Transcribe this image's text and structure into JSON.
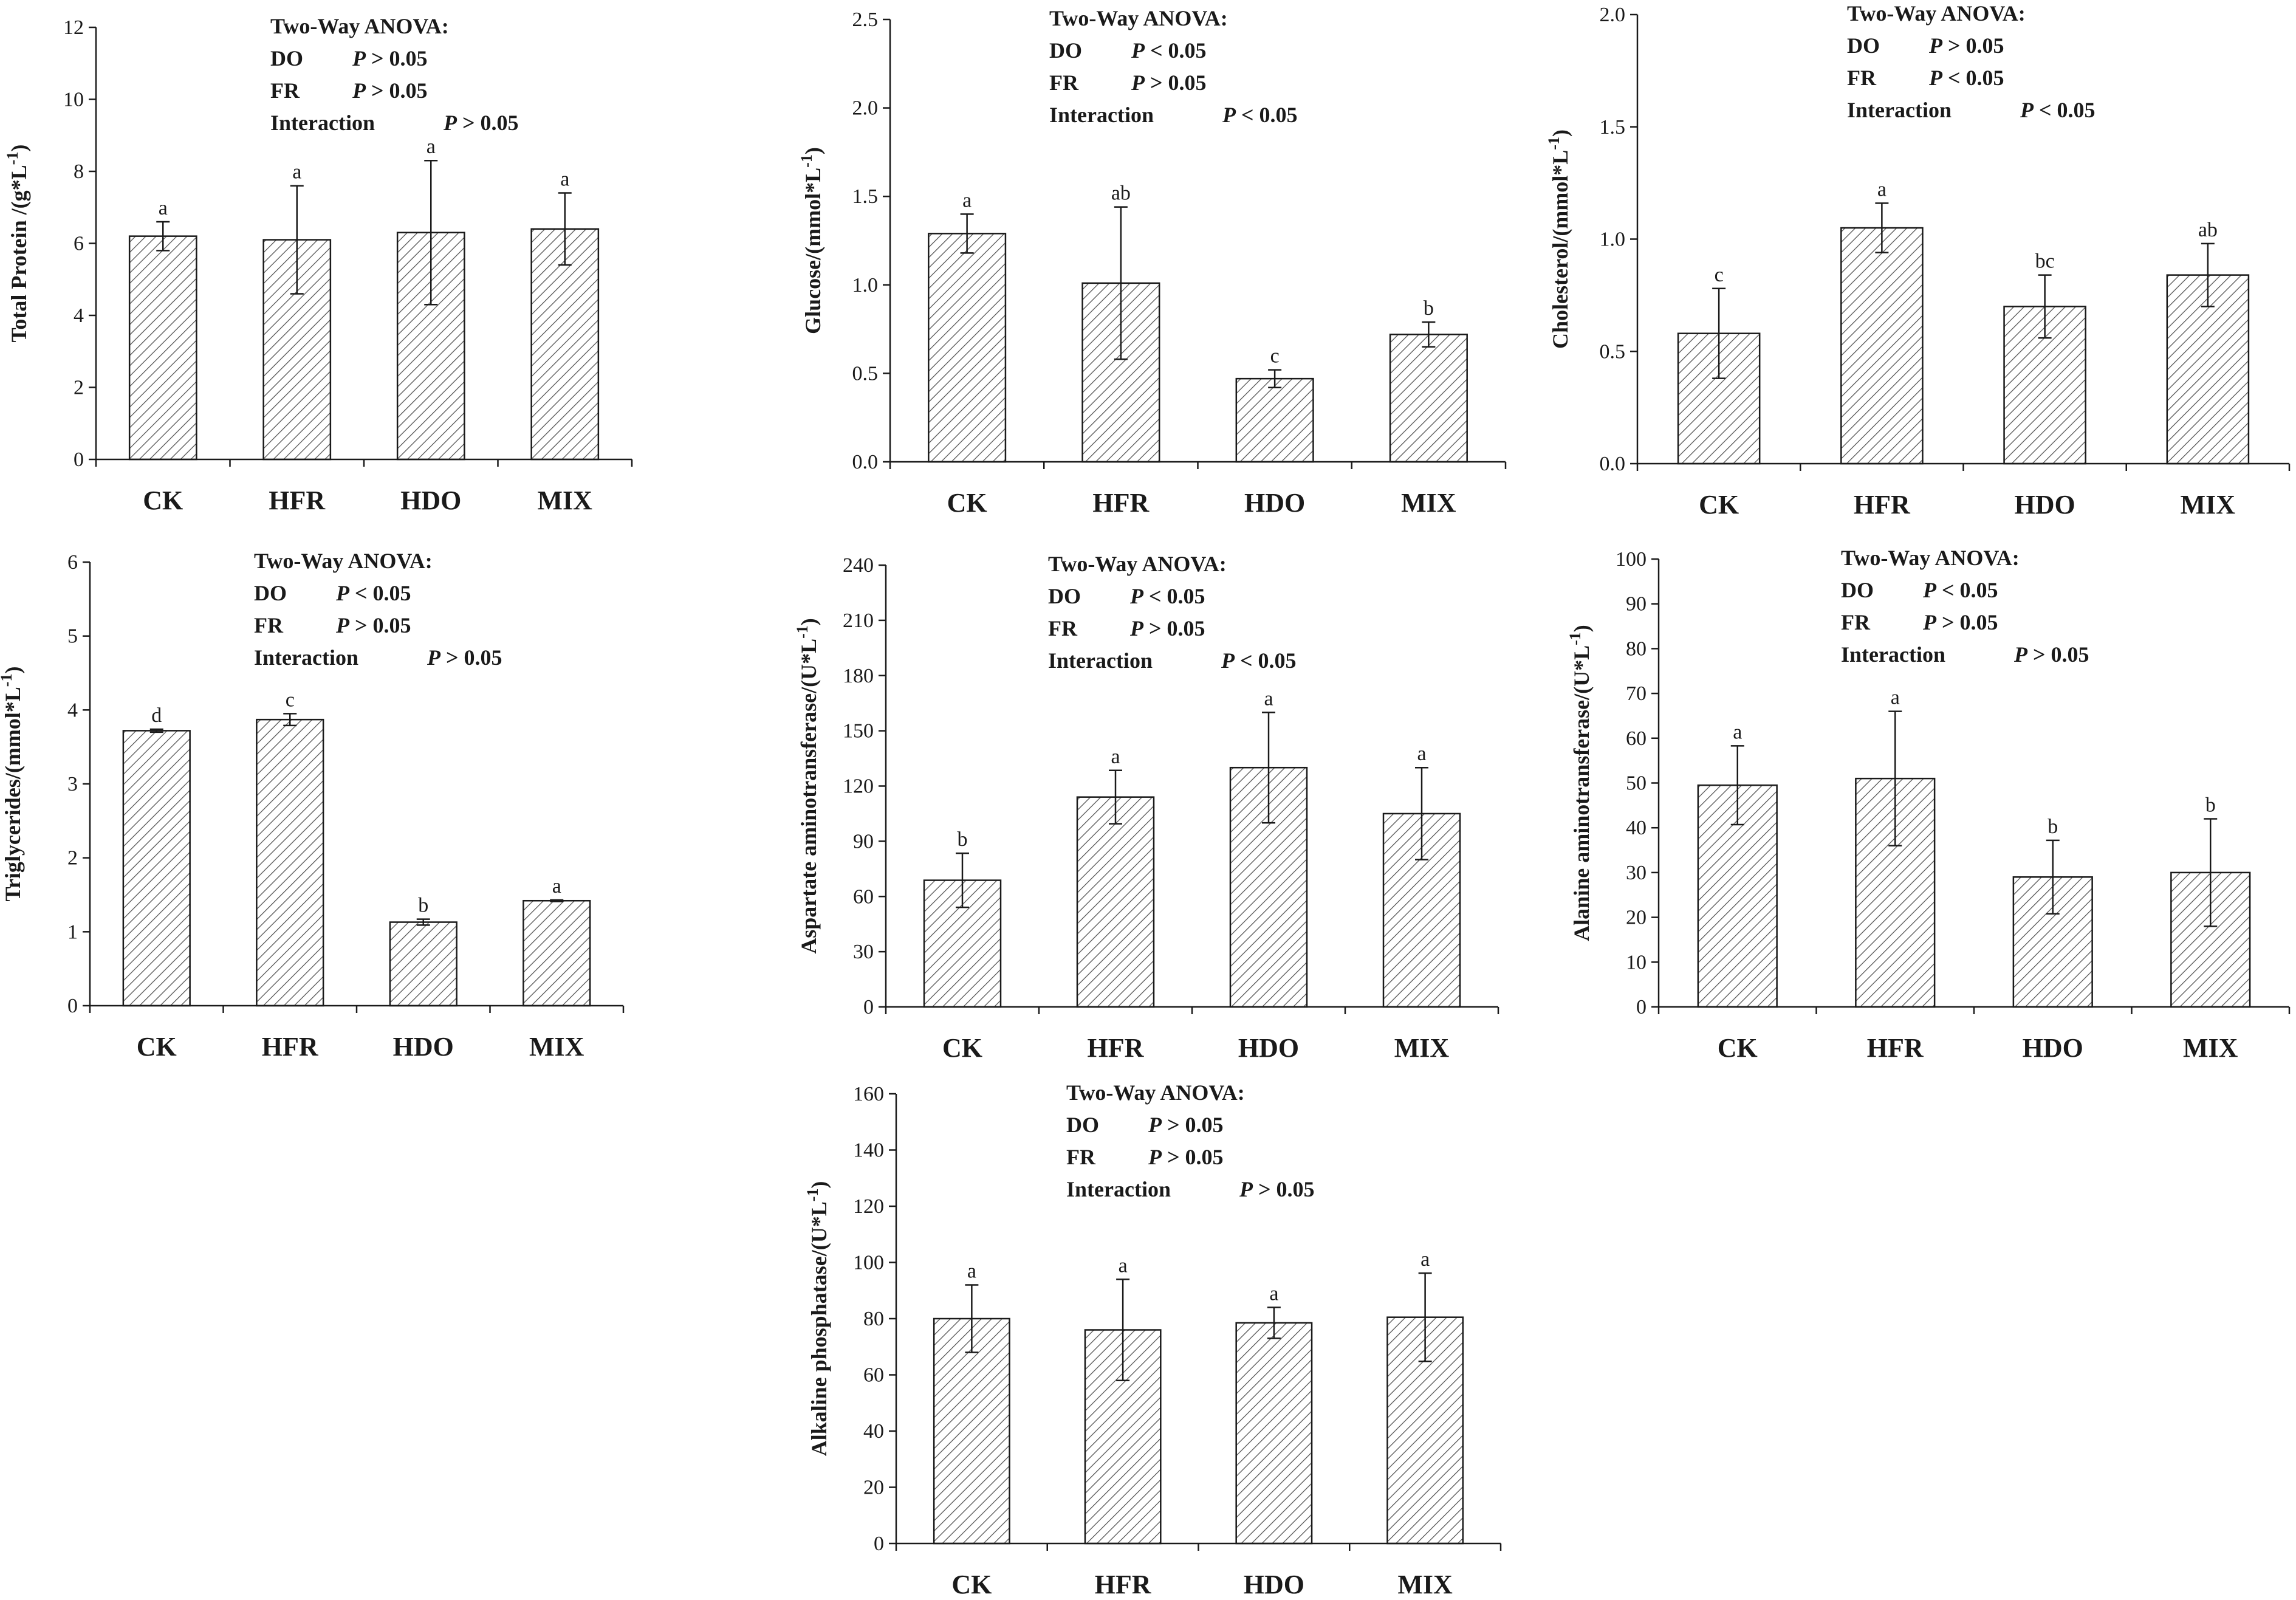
{
  "anova_heading": "Two-Way ANOVA:",
  "colors": {
    "ink": "#1a1a1a",
    "bar_fill": "#ffffff",
    "hatch": "#555555"
  },
  "chart_data": [
    {
      "type": "bar",
      "categories": [
        "CK",
        "HFR",
        "HDO",
        "MIX"
      ],
      "values": [
        6.2,
        6.1,
        6.3,
        6.4
      ],
      "errors": [
        0.4,
        1.5,
        2.0,
        1.0
      ],
      "letters": [
        "a",
        "a",
        "a",
        "a"
      ],
      "ylabel": "Total Protein /(g*L",
      "ylabel_sup": "-1",
      "ylabel_end": ")",
      "ylim": [
        0,
        12
      ],
      "yticks": [
        0,
        2,
        4,
        6,
        8,
        10,
        12
      ],
      "tick_labels": [
        "0",
        "2",
        "4",
        "6",
        "8",
        "10",
        "12"
      ],
      "anova": [
        {
          "factor": "DO",
          "p": "P > 0.05"
        },
        {
          "factor": "FR",
          "p": "P > 0.05"
        },
        {
          "factor": "Interaction",
          "p": "P > 0.05"
        }
      ]
    },
    {
      "type": "bar",
      "categories": [
        "CK",
        "HFR",
        "HDO",
        "MIX"
      ],
      "values": [
        1.29,
        1.01,
        0.47,
        0.72
      ],
      "errors": [
        0.11,
        0.43,
        0.05,
        0.07
      ],
      "letters": [
        "a",
        "ab",
        "c",
        "b"
      ],
      "ylabel": "Glucose/(mmol*L",
      "ylabel_sup": "-1",
      "ylabel_end": ")",
      "ylim": [
        0,
        2.5
      ],
      "yticks": [
        0,
        0.5,
        1.0,
        1.5,
        2.0,
        2.5
      ],
      "tick_labels": [
        "0.0",
        "0.5",
        "1.0",
        "1.5",
        "2.0",
        "2.5"
      ],
      "anova": [
        {
          "factor": "DO",
          "p": "P < 0.05"
        },
        {
          "factor": "FR",
          "p": "P > 0.05"
        },
        {
          "factor": "Interaction",
          "p": "P < 0.05"
        }
      ]
    },
    {
      "type": "bar",
      "categories": [
        "CK",
        "HFR",
        "HDO",
        "MIX"
      ],
      "values": [
        0.58,
        1.05,
        0.7,
        0.84
      ],
      "errors": [
        0.2,
        0.11,
        0.14,
        0.14
      ],
      "letters": [
        "c",
        "a",
        "bc",
        "ab"
      ],
      "ylabel": "Cholesterol/(mmol*L",
      "ylabel_sup": "-1",
      "ylabel_end": ")",
      "ylim": [
        0,
        2.0
      ],
      "yticks": [
        0,
        0.5,
        1.0,
        1.5,
        2.0
      ],
      "tick_labels": [
        "0.0",
        "0.5",
        "1.0",
        "1.5",
        "2.0"
      ],
      "anova": [
        {
          "factor": "DO",
          "p": "P > 0.05"
        },
        {
          "factor": "FR",
          "p": "P < 0.05"
        },
        {
          "factor": "Interaction",
          "p": "P < 0.05"
        }
      ]
    },
    {
      "type": "bar",
      "categories": [
        "CK",
        "HFR",
        "HDO",
        "MIX"
      ],
      "values": [
        3.72,
        3.87,
        1.13,
        1.42
      ],
      "errors": [
        0.02,
        0.08,
        0.04,
        0.01
      ],
      "letters": [
        "d",
        "c",
        "b",
        "a"
      ],
      "ylabel": "Triglycerides/(mmol*L",
      "ylabel_sup": "-1",
      "ylabel_end": ")",
      "ylim": [
        0,
        6
      ],
      "yticks": [
        0,
        1,
        2,
        3,
        4,
        5,
        6
      ],
      "tick_labels": [
        "0",
        "1",
        "2",
        "3",
        "4",
        "5",
        "6"
      ],
      "anova": [
        {
          "factor": "DO",
          "p": "P < 0.05"
        },
        {
          "factor": "FR",
          "p": "P > 0.05"
        },
        {
          "factor": "Interaction",
          "p": "P > 0.05"
        }
      ]
    },
    {
      "type": "bar",
      "categories": [
        "CK",
        "HFR",
        "HDO",
        "MIX"
      ],
      "values": [
        68.8,
        114,
        130,
        105
      ],
      "errors": [
        14.7,
        14.5,
        30,
        25
      ],
      "letters": [
        "b",
        "a",
        "a",
        "a"
      ],
      "ylabel": "Aspartate aminotransferase/(U*L",
      "ylabel_sup": "-1",
      "ylabel_end": ")",
      "ylim": [
        0,
        240
      ],
      "yticks": [
        0,
        30,
        60,
        90,
        120,
        150,
        180,
        210,
        240
      ],
      "tick_labels": [
        "0",
        "30",
        "60",
        "90",
        "120",
        "150",
        "180",
        "210",
        "240"
      ],
      "anova": [
        {
          "factor": "DO",
          "p": "P < 0.05"
        },
        {
          "factor": "FR",
          "p": "P > 0.05"
        },
        {
          "factor": "Interaction",
          "p": "P < 0.05"
        }
      ]
    },
    {
      "type": "bar",
      "categories": [
        "CK",
        "HFR",
        "HDO",
        "MIX"
      ],
      "values": [
        49.5,
        51,
        29,
        30
      ],
      "errors": [
        8.8,
        15,
        8.2,
        12
      ],
      "letters": [
        "a",
        "a",
        "b",
        "b"
      ],
      "ylabel": "Alanine aminotransferase/(U*L",
      "ylabel_sup": "-1",
      "ylabel_end": ")",
      "ylim": [
        0,
        100
      ],
      "yticks": [
        0,
        10,
        20,
        30,
        40,
        50,
        60,
        70,
        80,
        90,
        100
      ],
      "tick_labels": [
        "0",
        "10",
        "20",
        "30",
        "40",
        "50",
        "60",
        "70",
        "80",
        "90",
        "100"
      ],
      "anova": [
        {
          "factor": "DO",
          "p": "P < 0.05"
        },
        {
          "factor": "FR",
          "p": "P > 0.05"
        },
        {
          "factor": "Interaction",
          "p": "P > 0.05"
        }
      ]
    },
    {
      "type": "bar",
      "categories": [
        "CK",
        "HFR",
        "HDO",
        "MIX"
      ],
      "values": [
        80,
        76,
        78.5,
        80.5
      ],
      "errors": [
        12,
        18,
        5.5,
        15.7
      ],
      "letters": [
        "a",
        "a",
        "a",
        "a"
      ],
      "ylabel": "Alkaline phosphatase/(U*L",
      "ylabel_sup": "-1",
      "ylabel_end": ")",
      "ylim": [
        0,
        160
      ],
      "yticks": [
        0,
        20,
        40,
        60,
        80,
        100,
        120,
        140,
        160
      ],
      "tick_labels": [
        "0",
        "20",
        "40",
        "60",
        "80",
        "100",
        "120",
        "140",
        "160"
      ],
      "anova": [
        {
          "factor": "DO",
          "p": "P > 0.05"
        },
        {
          "factor": "FR",
          "p": "P > 0.05"
        },
        {
          "factor": "Interaction",
          "p": "P > 0.05"
        }
      ]
    }
  ]
}
